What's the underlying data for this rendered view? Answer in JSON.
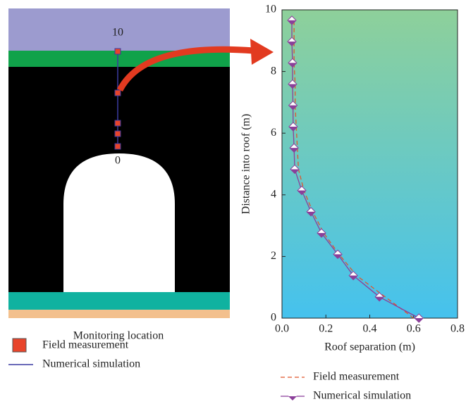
{
  "chart_data": {
    "type": "line",
    "xlabel": "Roof separation (m)",
    "ylabel": "Distance into roof (m)",
    "xlim": [
      0,
      0.8
    ],
    "xticks": [
      {
        "value": 0,
        "label": "0.0"
      },
      0.2,
      0.4,
      0.6,
      0.8
    ],
    "ylim": [
      0,
      10
    ],
    "yticks": [
      0,
      2,
      4,
      6,
      8,
      10
    ],
    "series": [
      {
        "name": "Field measurement",
        "color": "#e0552b",
        "style": "dashed",
        "x": [
          0.6,
          0.47,
          0.34,
          0.26,
          0.19,
          0.14,
          0.1,
          0.075,
          0.07,
          0.065,
          0.06,
          0.06,
          0.055,
          0.055,
          0.055
        ],
        "y": [
          0,
          0.69,
          1.38,
          2.07,
          2.76,
          3.45,
          4.14,
          4.83,
          5.52,
          6.21,
          6.9,
          7.59,
          8.28,
          8.97,
          9.66
        ]
      },
      {
        "name": "Numerical simulation",
        "color": "#8b3f9a",
        "style": "solid",
        "marker": "diamond",
        "x": [
          0.624,
          0.444,
          0.325,
          0.254,
          0.18,
          0.132,
          0.09,
          0.058,
          0.055,
          0.051,
          0.05,
          0.048,
          0.048,
          0.045,
          0.045
        ],
        "y": [
          0,
          0.69,
          1.38,
          2.07,
          2.76,
          3.45,
          4.14,
          4.83,
          5.52,
          6.21,
          6.9,
          7.59,
          8.28,
          8.97,
          9.66
        ]
      }
    ]
  },
  "diagram": {
    "top_label": "10",
    "bottom_label": "0",
    "caption": "Monitoring location",
    "legend": [
      "Field measurement",
      "Numerical simulation"
    ]
  }
}
